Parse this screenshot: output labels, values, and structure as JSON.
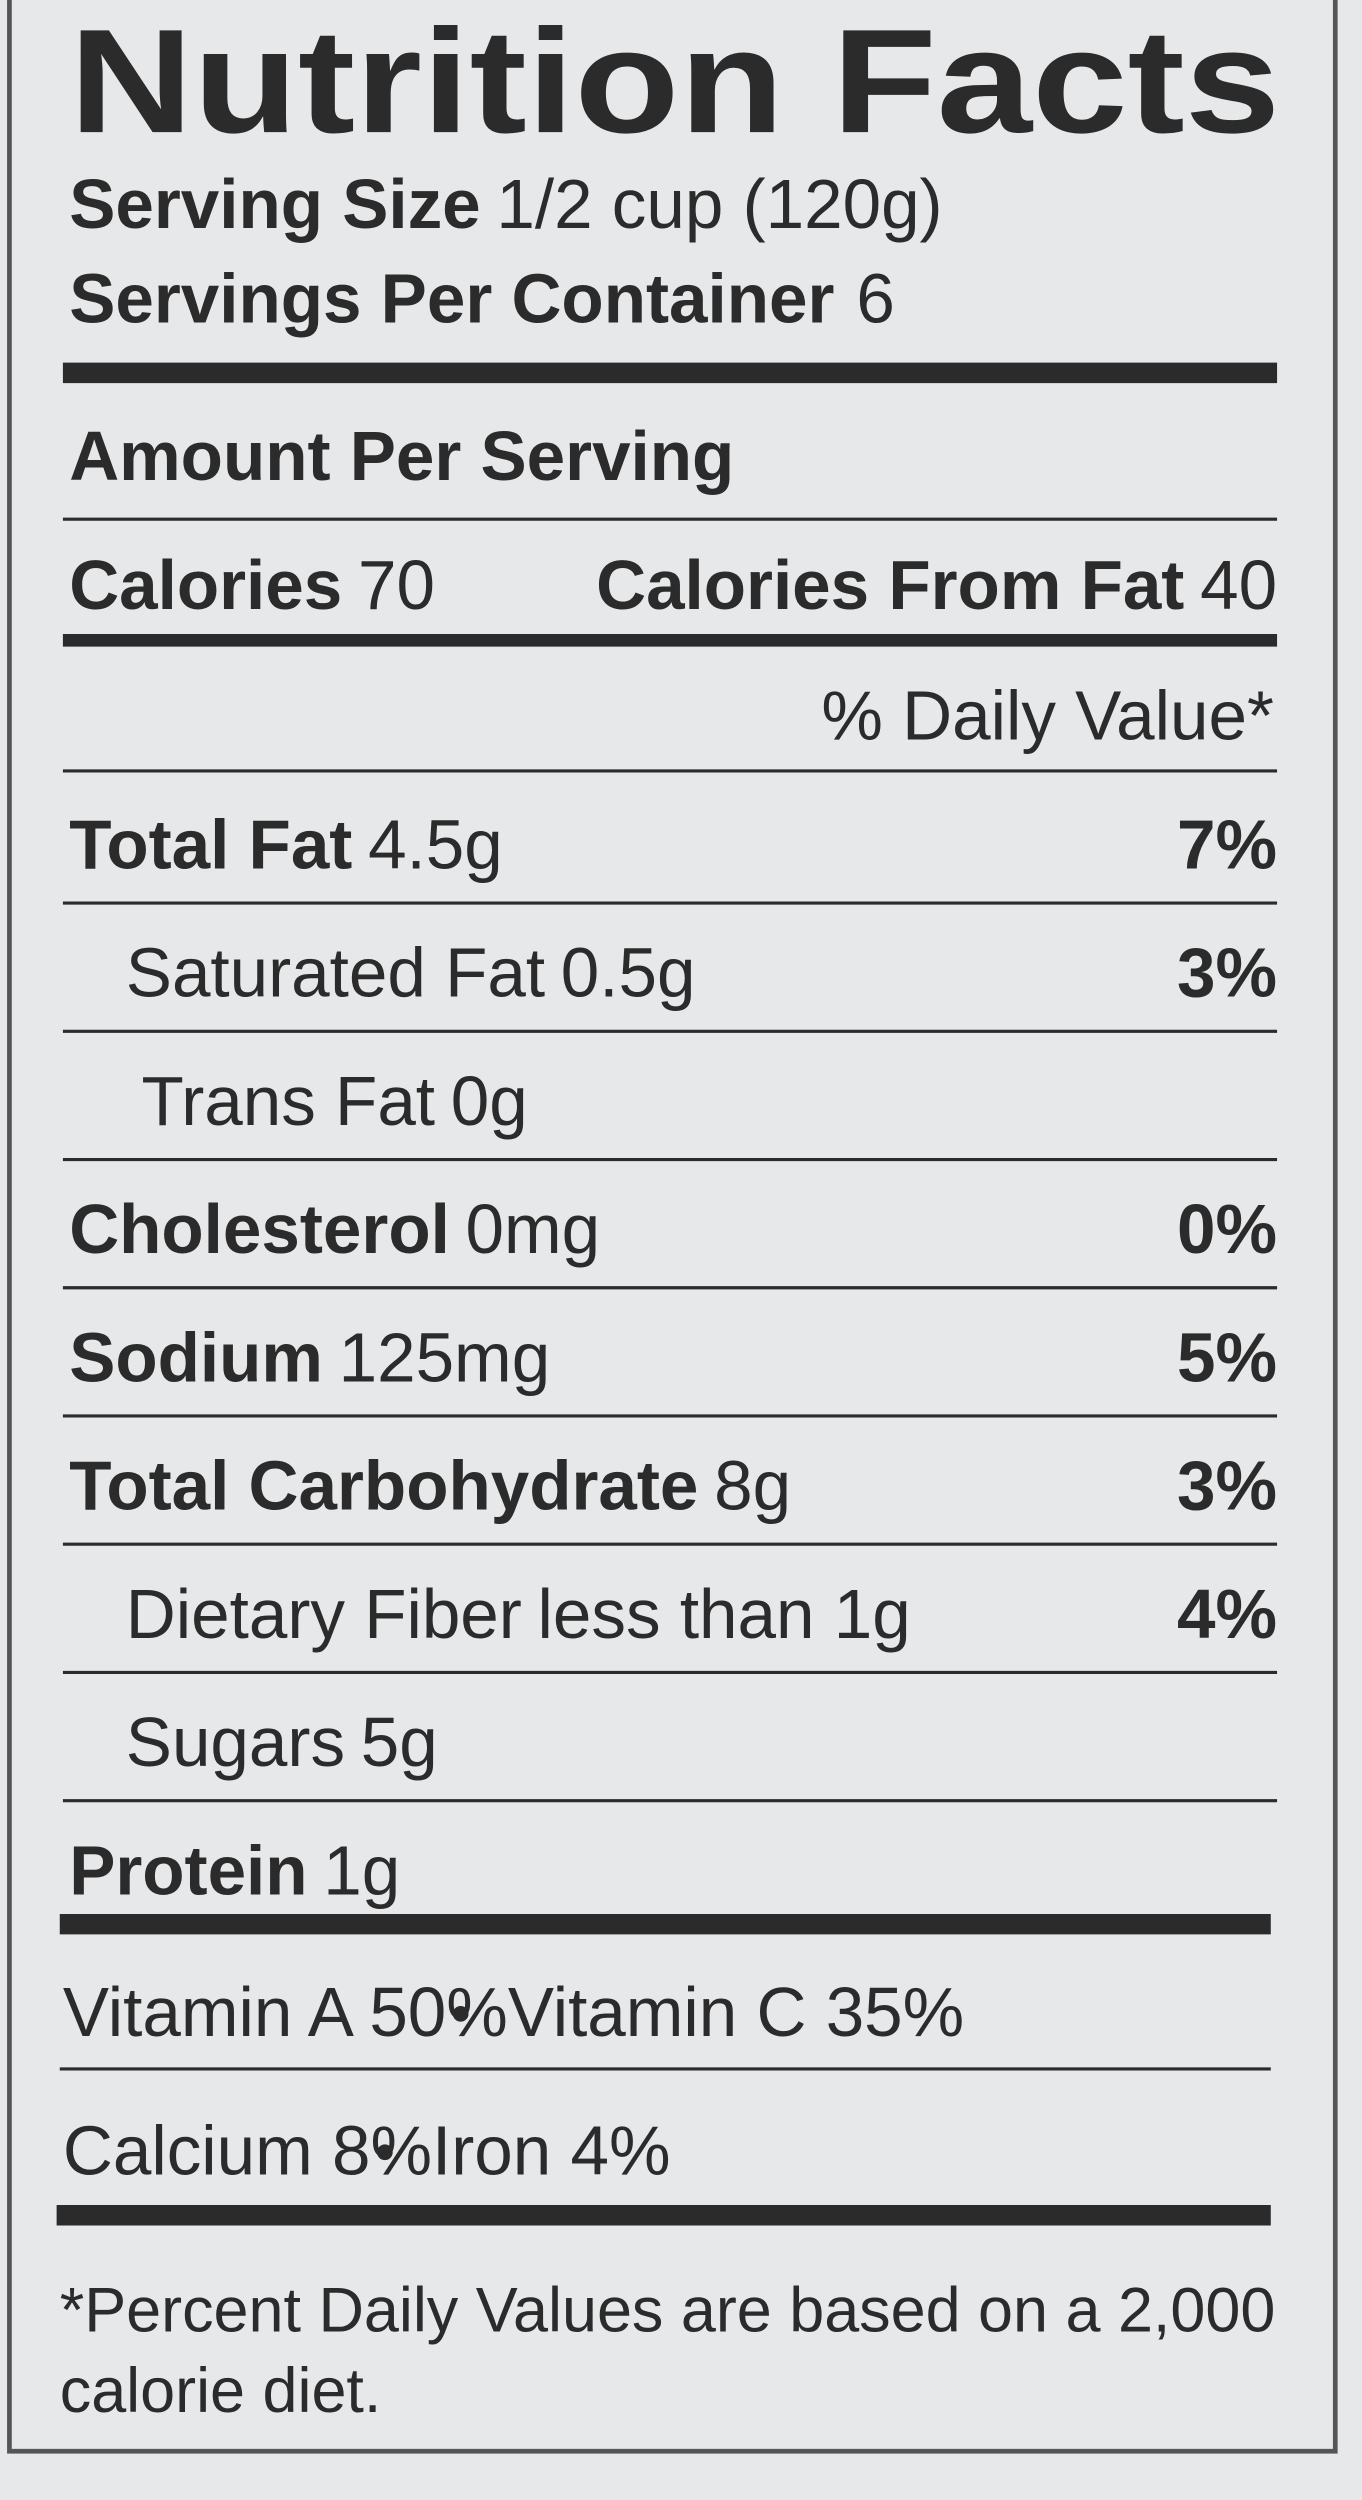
{
  "header": {
    "title": "Nutrition Facts",
    "serving_size": {
      "label": "Serving Size",
      "value": "1/2 cup (120g)"
    },
    "servings_per_container": {
      "label": "Servings Per Container",
      "value": "6"
    }
  },
  "amount_per_serving": "Amount Per Serving",
  "calories": {
    "label": "Calories",
    "value": "70"
  },
  "calories_from_fat": {
    "label": "Calories From Fat",
    "value": "40"
  },
  "daily_value_header": "% Daily Value*",
  "nutrients": [
    {
      "name": "Total Fat",
      "amount": "4.5g",
      "dv": "7%"
    },
    {
      "name": "Saturated Fat",
      "amount": "0.5g",
      "dv": "3%"
    },
    {
      "name": "Trans Fat",
      "amount": "0g"
    },
    {
      "name": "Cholesterol",
      "amount": "0mg",
      "dv": "0%"
    },
    {
      "name": "Sodium",
      "amount": "125mg",
      "dv": "5%"
    },
    {
      "name": "Total Carbohydrate",
      "amount": "8g",
      "dv": "3%"
    },
    {
      "name": "Dietary Fiber",
      "amount": "less than 1g",
      "dv": "4%"
    },
    {
      "name": "Sugars",
      "amount": "5g"
    },
    {
      "name": "Protein",
      "amount": "1g"
    }
  ],
  "vitamins": [
    [
      "Vitamin A 50%",
      "Vitamin C 35%"
    ],
    [
      "Calcium 8%",
      "Iron 4%"
    ]
  ],
  "footnote": [
    "*Percent Daily Values are based on a 2,000",
    "calorie diet."
  ]
}
